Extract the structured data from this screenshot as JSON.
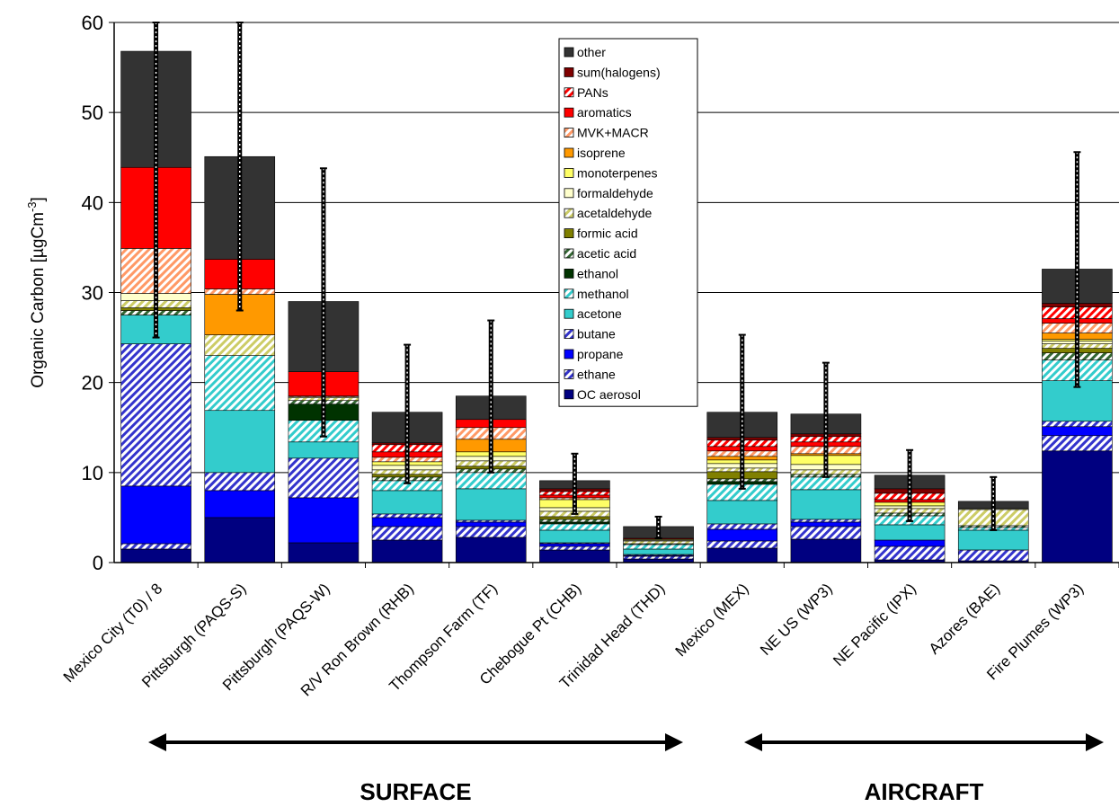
{
  "chart_data": {
    "type": "bar",
    "stacked": true,
    "title": "",
    "xlabel": "",
    "ylabel": "Organic Carbon [µgCm",
    "ylabel_superscript": "-3",
    "ylabel_suffix": "]",
    "ylim": [
      0,
      60
    ],
    "yticks": [
      "0",
      "10",
      "20",
      "30",
      "40",
      "50",
      "60"
    ],
    "grid": true,
    "legend_position": "top-center",
    "categories": [
      "Mexico City (T0) / 8",
      "Pittsburgh (PAQS-S)",
      "Pittsburgh (PAQS-W)",
      "R/V Ron Brown (RHB)",
      "Thompson Farm (TF)",
      "Chebogue Pt (CHB)",
      "Trinidad Head (THD)",
      "Mexico (MEX)",
      "NE US (WP3)",
      "NE Pacific (IPX)",
      "Azores (BAE)",
      "Fire Plumes (WP3)"
    ],
    "series": [
      {
        "name": "OC aerosol",
        "color": "#000080",
        "pattern": "solid",
        "values": [
          1.5,
          5.0,
          2.2,
          2.5,
          2.8,
          1.4,
          0.4,
          1.6,
          2.6,
          0.3,
          0.2,
          12.4
        ]
      },
      {
        "name": "ethane",
        "color": "#3333cc",
        "pattern": "hatch",
        "values": [
          0.6,
          0.0,
          0.0,
          1.5,
          1.2,
          0.4,
          0.3,
          0.8,
          1.4,
          1.5,
          1.2,
          1.7
        ]
      },
      {
        "name": "propane",
        "color": "#0000ff",
        "pattern": "solid",
        "values": [
          6.4,
          3.0,
          5.0,
          1.0,
          0.5,
          0.3,
          0.1,
          1.3,
          0.5,
          0.7,
          0.0,
          1.0
        ]
      },
      {
        "name": "butane",
        "color": "#3333cc",
        "pattern": "hatch",
        "values": [
          15.8,
          2.0,
          4.4,
          0.4,
          0.2,
          0.1,
          0.1,
          0.6,
          0.3,
          0.0,
          0.0,
          0.6
        ]
      },
      {
        "name": "acetone",
        "color": "#33cccc",
        "pattern": "solid",
        "values": [
          3.2,
          6.9,
          1.8,
          2.6,
          3.5,
          1.4,
          0.6,
          2.6,
          3.3,
          1.7,
          2.2,
          4.5
        ]
      },
      {
        "name": "methanol",
        "color": "#33cccc",
        "pattern": "hatch",
        "values": [
          0.0,
          6.1,
          2.4,
          1.1,
          1.8,
          0.7,
          0.5,
          1.8,
          1.4,
          1.0,
          0.3,
          2.3
        ]
      },
      {
        "name": "ethanol",
        "color": "#003300",
        "pattern": "solid",
        "values": [
          0.0,
          0.0,
          1.8,
          0.0,
          0.0,
          0.2,
          0.0,
          0.3,
          0.0,
          0.0,
          0.0,
          0.0
        ]
      },
      {
        "name": "acetic acid",
        "color": "#336633",
        "pattern": "hatch",
        "values": [
          0.5,
          0.0,
          0.4,
          0.4,
          0.4,
          0.3,
          0.1,
          0.3,
          0.3,
          0.3,
          0.2,
          0.8
        ]
      },
      {
        "name": "formic acid",
        "color": "#808000",
        "pattern": "solid",
        "values": [
          0.3,
          0.0,
          0.0,
          0.3,
          0.3,
          0.3,
          0.0,
          0.8,
          0.0,
          0.0,
          0.0,
          0.5
        ]
      },
      {
        "name": "acetaldehyde",
        "color": "#cccc66",
        "pattern": "hatch",
        "values": [
          0.8,
          2.3,
          0.3,
          0.5,
          0.6,
          0.6,
          0.3,
          0.4,
          0.5,
          0.5,
          1.8,
          0.5
        ]
      },
      {
        "name": "formaldehyde",
        "color": "#ffffcc",
        "pattern": "solid",
        "values": [
          0.8,
          0.0,
          0.1,
          0.5,
          0.5,
          0.4,
          0.1,
          0.5,
          0.6,
          0.3,
          0.1,
          0.3
        ]
      },
      {
        "name": "monoterpenes",
        "color": "#ffff66",
        "pattern": "solid",
        "values": [
          0.0,
          0.0,
          0.0,
          0.4,
          0.5,
          0.9,
          0.1,
          0.4,
          1.0,
          0.4,
          0.0,
          0.2
        ]
      },
      {
        "name": "isoprene",
        "color": "#ff9900",
        "pattern": "solid",
        "values": [
          0.0,
          4.5,
          0.0,
          0.0,
          1.4,
          0.0,
          0.0,
          0.4,
          0.2,
          0.0,
          0.0,
          0.7
        ]
      },
      {
        "name": "MVK+MACR",
        "color": "#ff9966",
        "pattern": "hatch",
        "values": [
          5.0,
          0.6,
          0.1,
          0.5,
          1.3,
          0.2,
          0.0,
          0.6,
          0.8,
          0.0,
          0.0,
          1.1
        ]
      },
      {
        "name": "aromatics",
        "color": "#ff0000",
        "pattern": "solid",
        "values": [
          9.0,
          3.3,
          2.7,
          0.6,
          0.9,
          0.3,
          0.1,
          0.5,
          0.5,
          0.3,
          0.0,
          0.5
        ]
      },
      {
        "name": "PANs",
        "color": "#ff0000",
        "pattern": "hatch",
        "values": [
          0.0,
          0.0,
          0.0,
          0.8,
          0.0,
          0.4,
          0.0,
          0.7,
          0.6,
          0.7,
          0.0,
          1.3
        ]
      },
      {
        "name": "sum(halogens)",
        "color": "#800000",
        "pattern": "solid",
        "values": [
          0.0,
          0.0,
          0.0,
          0.2,
          0.0,
          0.3,
          0.0,
          0.3,
          0.3,
          0.5,
          0.0,
          0.4
        ]
      },
      {
        "name": "other",
        "color": "#333333",
        "pattern": "solid",
        "values": [
          12.9,
          11.4,
          7.8,
          3.4,
          2.6,
          0.9,
          1.3,
          2.8,
          2.2,
          1.5,
          0.8,
          3.8
        ]
      }
    ],
    "error_bars": [
      {
        "low": 25.0,
        "high": 60.0
      },
      {
        "low": 28.0,
        "high": 60.0
      },
      {
        "low": 14.0,
        "high": 43.8
      },
      {
        "low": 8.8,
        "high": 24.2
      },
      {
        "low": 10.0,
        "high": 26.9
      },
      {
        "low": 5.4,
        "high": 12.1
      },
      {
        "low": 2.7,
        "high": 5.1
      },
      {
        "low": 8.2,
        "high": 25.3
      },
      {
        "low": 9.5,
        "high": 22.2
      },
      {
        "low": 4.6,
        "high": 12.5
      },
      {
        "low": 3.6,
        "high": 9.5
      },
      {
        "low": 19.5,
        "high": 45.6
      }
    ],
    "annotations": [
      {
        "label": "SURFACE",
        "from_category": 0,
        "to_category": 6
      },
      {
        "label": "AIRCRAFT",
        "from_category": 7,
        "to_category": 11
      }
    ]
  }
}
